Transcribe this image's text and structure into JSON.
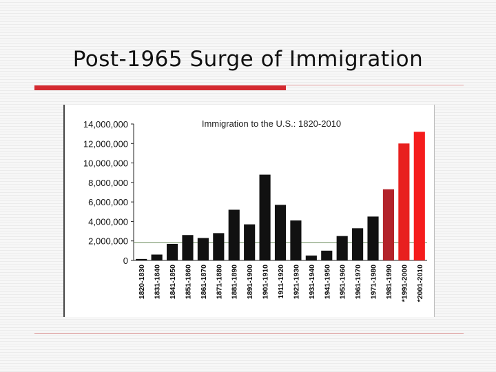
{
  "slide": {
    "title": "Post-1965 Surge of Immigration"
  },
  "colors": {
    "accent": "#d42a30",
    "bar_black": "#111111",
    "bar_red_dark": "#b3232a",
    "bar_red": "#e8201f",
    "bar_red_bright": "#f51c1c"
  },
  "chart_data": {
    "type": "bar",
    "title": "Immigration to the U.S.: 1820-2010",
    "xlabel": "",
    "ylabel": "",
    "ylim": [
      0,
      14000000
    ],
    "y_ticks": [
      0,
      2000000,
      4000000,
      6000000,
      8000000,
      10000000,
      12000000,
      14000000
    ],
    "y_tick_labels": [
      "0",
      "2,000,000",
      "4,000,000",
      "6,000,000",
      "8,000,000",
      "10,000,000",
      "12,000,000",
      "14,000,000"
    ],
    "grid": false,
    "reference_line": 1800000,
    "categories": [
      "1820-1830",
      "1831-1840",
      "1841-1850",
      "1851-1860",
      "1861-1870",
      "1871-1880",
      "1881-1890",
      "1891-1900",
      "1901-1910",
      "1911-1920",
      "1921-1930",
      "1931-1940",
      "1941-1950",
      "1951-1960",
      "1961-1970",
      "1971-1980",
      "1981-1990",
      "*1991-2000",
      "*2001-2010"
    ],
    "values": [
      150000,
      600000,
      1700000,
      2600000,
      2300000,
      2800000,
      5200000,
      3700000,
      8800000,
      5700000,
      4100000,
      500000,
      1000000,
      2500000,
      3300000,
      4500000,
      7300000,
      12000000,
      13200000
    ],
    "bar_colors": [
      "#111111",
      "#111111",
      "#111111",
      "#111111",
      "#111111",
      "#111111",
      "#111111",
      "#111111",
      "#111111",
      "#111111",
      "#111111",
      "#111111",
      "#111111",
      "#111111",
      "#111111",
      "#111111",
      "#b3232a",
      "#e8201f",
      "#f51c1c"
    ]
  }
}
